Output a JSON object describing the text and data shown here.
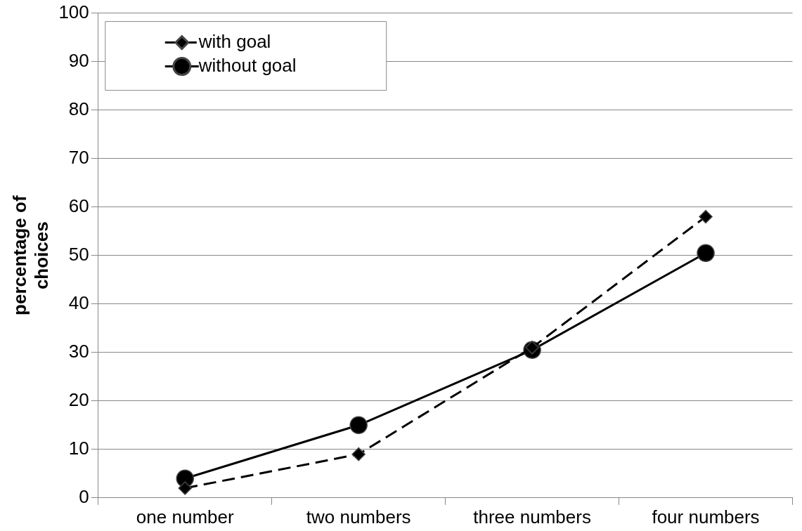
{
  "chart_data": {
    "type": "line",
    "ylabel": "percentage of choices",
    "categories": [
      "one number",
      "two numbers",
      "three numbers",
      "four numbers"
    ],
    "series": [
      {
        "name": "with goal",
        "color": "#000000",
        "values": [
          2,
          9,
          31,
          58
        ],
        "marker": "diamond",
        "line_style": "dashed"
      },
      {
        "name": "without goal",
        "color": "#000000",
        "values": [
          4,
          15,
          30.5,
          50.5
        ],
        "marker": "circle",
        "line_style": "solid"
      }
    ],
    "ylim": [
      0,
      100
    ],
    "yticks": [
      0,
      10,
      20,
      30,
      40,
      50,
      60,
      70,
      80,
      90,
      100
    ],
    "grid": "y",
    "legend": "top left"
  }
}
